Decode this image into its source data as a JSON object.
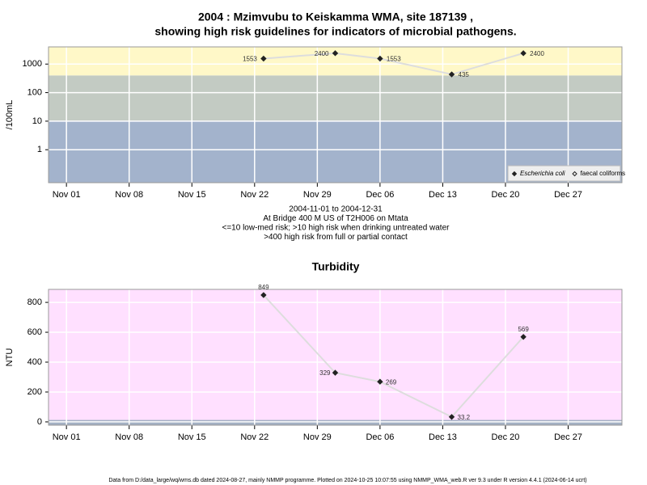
{
  "chart_data": [
    {
      "type": "line",
      "title": [
        "2004 : Mzimvubu to Keiskamma WMA, site 187139 ,",
        "showing high risk guidelines for indicators of microbial pathogens."
      ],
      "ylabel": "/100mL",
      "x": [
        "2004-11-23",
        "2004-12-01",
        "2004-12-06",
        "2004-12-14",
        "2004-12-22"
      ],
      "series": [
        {
          "name": "Escherichia coli",
          "color": "#222222",
          "marker": "diamond",
          "values": [
            1553,
            2400,
            1553,
            435,
            2400
          ]
        },
        {
          "name": "faecal coliforms",
          "color": "#222222",
          "marker": "diamond-open",
          "values": [
            null,
            null,
            null,
            null,
            null
          ]
        }
      ],
      "line_color": "#dddddd",
      "ylog": true,
      "ylim": [
        0.07,
        4000
      ],
      "yticks": [
        1,
        10,
        100,
        1000
      ],
      "xlim": [
        "2004-10-30",
        "2005-01-02"
      ],
      "xticks": [
        {
          "value": "2004-11-01",
          "label": "Nov 01"
        },
        {
          "value": "2004-11-08",
          "label": "Nov 08"
        },
        {
          "value": "2004-11-15",
          "label": "Nov 15"
        },
        {
          "value": "2004-11-22",
          "label": "Nov 22"
        },
        {
          "value": "2004-11-29",
          "label": "Nov 29"
        },
        {
          "value": "2004-12-06",
          "label": "Dec 06"
        },
        {
          "value": "2004-12-13",
          "label": "Dec 13"
        },
        {
          "value": "2004-12-20",
          "label": "Dec 20"
        },
        {
          "value": "2004-12-27",
          "label": "Dec 27"
        }
      ],
      "bands": [
        {
          "max": 10,
          "color": "#a3b3cc"
        },
        {
          "max": 400,
          "color": "#c3cbc3"
        },
        {
          "color": "#fff8c8"
        }
      ],
      "grid": true,
      "legend": "bottom-right",
      "notes": [
        "2004-11-01 to 2004-12-31",
        "At Bridge 400 M US of T2H006 on Mtata",
        "<=10 low-med risk; >10 high risk when drinking untreated water",
        ">400 high risk from full or partial contact"
      ]
    },
    {
      "type": "line",
      "title": "Turbidity",
      "ylabel": "NTU",
      "x": [
        "2004-11-23",
        "2004-12-01",
        "2004-12-06",
        "2004-12-14",
        "2004-12-22"
      ],
      "values": [
        849,
        329,
        269,
        33.2,
        569
      ],
      "color": "#222222",
      "line_color": "#dddddd",
      "ylim": [
        -22,
        887
      ],
      "yticks": [
        0,
        200,
        400,
        600,
        800
      ],
      "xlim": [
        "2004-10-30",
        "2005-01-02"
      ],
      "xticks": [
        {
          "value": "2004-11-01",
          "label": "Nov 01"
        },
        {
          "value": "2004-11-08",
          "label": "Nov 08"
        },
        {
          "value": "2004-11-15",
          "label": "Nov 15"
        },
        {
          "value": "2004-11-22",
          "label": "Nov 22"
        },
        {
          "value": "2004-11-29",
          "label": "Nov 29"
        },
        {
          "value": "2004-12-06",
          "label": "Dec 06"
        },
        {
          "value": "2004-12-13",
          "label": "Dec 13"
        },
        {
          "value": "2004-12-20",
          "label": "Dec 20"
        },
        {
          "value": "2004-12-27",
          "label": "Dec 27"
        }
      ],
      "bands": [
        {
          "max": 13,
          "color": "#a3b0c3"
        },
        {
          "color": "#ffe0ff"
        }
      ],
      "grid": true
    }
  ],
  "footer": "Data from D:/data_large/wq/wms.db dated 2024-08-27, mainly NMMP programme. Plotted on 2024-10-25 10:07:55 using NMMP_WMA_web.R ver 9.3 under R version 4.4.1 (2024-06-14 ucrt)"
}
